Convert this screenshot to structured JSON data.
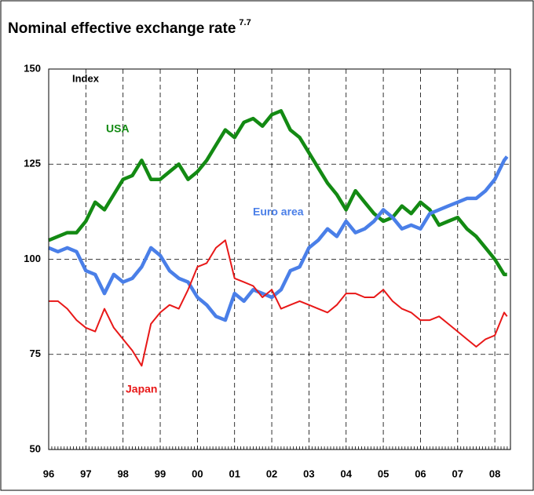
{
  "chart_data": {
    "type": "line",
    "title": "Nominal effective exchange rate",
    "title_note": "7.7",
    "ylabel": "Index",
    "x": [
      1996,
      1996.25,
      1996.5,
      1996.75,
      1997,
      1997.25,
      1997.5,
      1997.75,
      1998,
      1998.25,
      1998.5,
      1998.75,
      1999,
      1999.25,
      1999.5,
      1999.75,
      2000,
      2000.25,
      2000.5,
      2000.75,
      2001,
      2001.25,
      2001.5,
      2001.75,
      2002,
      2002.25,
      2002.5,
      2002.75,
      2003,
      2003.25,
      2003.5,
      2003.75,
      2004,
      2004.25,
      2004.5,
      2004.75,
      2005,
      2005.25,
      2005.5,
      2005.75,
      2006,
      2006.25,
      2006.5,
      2006.75,
      2007,
      2007.25,
      2007.5,
      2007.75,
      2008,
      2008.25,
      2008.33
    ],
    "series": [
      {
        "name": "USA",
        "color": "#138a13",
        "values": [
          105,
          106,
          107,
          107,
          110,
          115,
          113,
          117,
          121,
          122,
          126,
          121,
          121,
          123,
          125,
          121,
          123,
          126,
          130,
          134,
          132,
          136,
          137,
          135,
          138,
          139,
          134,
          132,
          128,
          124,
          120,
          117,
          113,
          118,
          115,
          112,
          110,
          111,
          114,
          112,
          115,
          113,
          109,
          110,
          111,
          108,
          106,
          103,
          100,
          96,
          96
        ]
      },
      {
        "name": "Euro area",
        "color": "#4a7fe8",
        "values": [
          103,
          102,
          103,
          102,
          97,
          96,
          91,
          96,
          94,
          95,
          98,
          103,
          101,
          97,
          95,
          94,
          90,
          88,
          85,
          84,
          91,
          89,
          92,
          91,
          90,
          92,
          97,
          98,
          103,
          105,
          108,
          106,
          110,
          107,
          108,
          110,
          113,
          111,
          108,
          109,
          108,
          112,
          113,
          114,
          115,
          116,
          116,
          118,
          121,
          126,
          127
        ]
      },
      {
        "name": "Japan",
        "color": "#e81818",
        "values": [
          89,
          89,
          87,
          84,
          82,
          81,
          87,
          82,
          79,
          76,
          72,
          83,
          86,
          88,
          87,
          92,
          98,
          99,
          103,
          105,
          95,
          94,
          93,
          90,
          92,
          87,
          88,
          89,
          88,
          87,
          86,
          88,
          91,
          91,
          90,
          90,
          92,
          89,
          87,
          86,
          84,
          84,
          85,
          83,
          81,
          79,
          77,
          79,
          80,
          86,
          85
        ]
      }
    ],
    "xlim": [
      1996,
      2008.42
    ],
    "xticks": [
      {
        "value": 1996,
        "label": "96"
      },
      {
        "value": 1997,
        "label": "97"
      },
      {
        "value": 1998,
        "label": "98"
      },
      {
        "value": 1999,
        "label": "99"
      },
      {
        "value": 2000,
        "label": "00"
      },
      {
        "value": 2001,
        "label": "01"
      },
      {
        "value": 2002,
        "label": "02"
      },
      {
        "value": 2003,
        "label": "03"
      },
      {
        "value": 2004,
        "label": "04"
      },
      {
        "value": 2005,
        "label": "05"
      },
      {
        "value": 2006,
        "label": "06"
      },
      {
        "value": 2007,
        "label": "07"
      },
      {
        "value": 2008,
        "label": "08"
      }
    ],
    "ylim": [
      50,
      150
    ],
    "yticks": [
      50,
      75,
      100,
      125,
      150
    ],
    "grid": true
  }
}
